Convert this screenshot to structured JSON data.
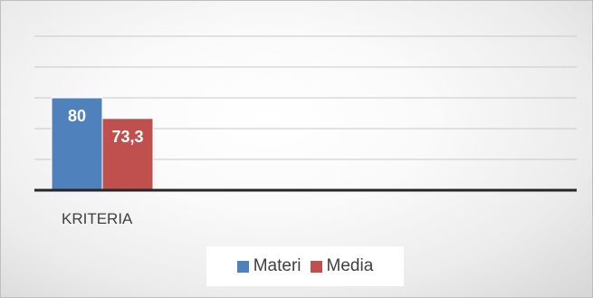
{
  "chart_data": {
    "type": "bar",
    "categories": [
      "KRITERIA"
    ],
    "series": [
      {
        "name": "Materi",
        "values": [
          80
        ],
        "color": "#4f81bd",
        "label": "80"
      },
      {
        "name": "Media",
        "values": [
          73.3
        ],
        "color": "#c0504d",
        "label": "73,3"
      }
    ],
    "ylim": [
      50,
      100
    ],
    "grid": true,
    "legend": "bottom",
    "data_labels": true
  },
  "legend": {
    "items": [
      {
        "label": "Materi",
        "color": "#4f81bd"
      },
      {
        "label": "Media",
        "color": "#c0504d"
      }
    ]
  }
}
